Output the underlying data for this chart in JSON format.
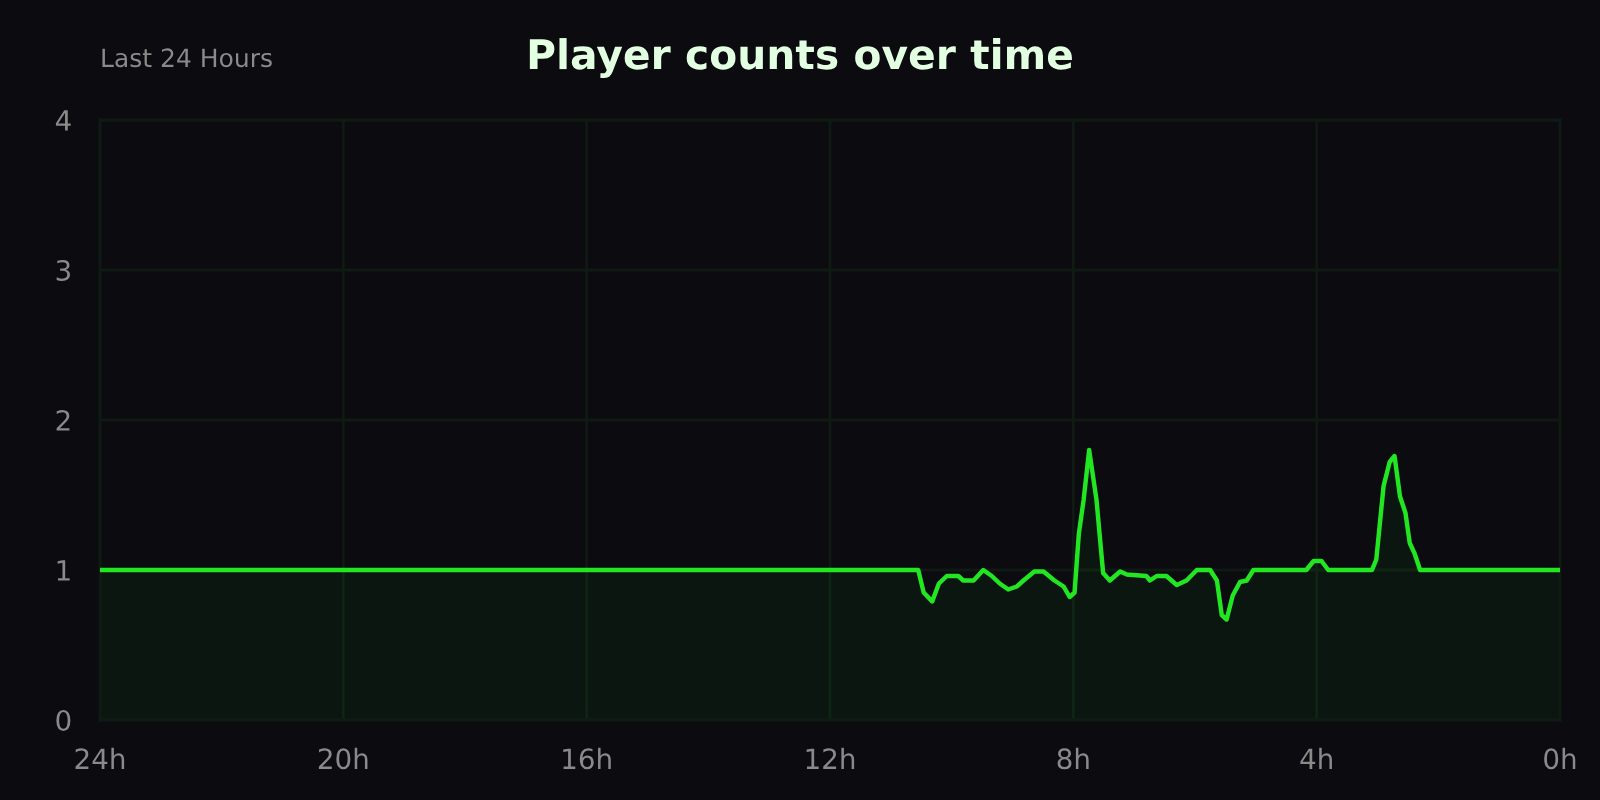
{
  "chart_data": {
    "type": "area",
    "title": "Player counts over time",
    "subtitle": "Last 24 Hours",
    "x": [
      24,
      10.55,
      10.46,
      10.32,
      10.21,
      10.08,
      9.89,
      9.81,
      9.64,
      9.48,
      9.34,
      9.21,
      9.07,
      8.93,
      8.82,
      8.64,
      8.49,
      8.31,
      8.16,
      8.06,
      7.98,
      7.91,
      7.83,
      7.74,
      7.62,
      7.51,
      7.4,
      7.23,
      7.12,
      6.8,
      6.74,
      6.63,
      6.47,
      6.3,
      6.14,
      5.97,
      5.75,
      5.64,
      5.56,
      5.48,
      5.38,
      5.26,
      5.15,
      5.04,
      4.17,
      4.05,
      3.92,
      3.81,
      3.09,
      3.02,
      2.9,
      2.8,
      2.72,
      2.63,
      2.54,
      2.47,
      2.39,
      2.3,
      0
    ],
    "values": [
      1,
      1,
      0.85,
      0.79,
      0.91,
      0.96,
      0.96,
      0.93,
      0.93,
      1.0,
      0.96,
      0.91,
      0.87,
      0.89,
      0.93,
      0.99,
      0.99,
      0.93,
      0.89,
      0.82,
      0.85,
      1.24,
      1.47,
      1.8,
      1.47,
      0.98,
      0.93,
      0.99,
      0.97,
      0.96,
      0.93,
      0.96,
      0.96,
      0.9,
      0.93,
      1.0,
      1.0,
      0.93,
      0.7,
      0.67,
      0.83,
      0.92,
      0.93,
      1.0,
      1.0,
      1.06,
      1.06,
      1.0,
      1.0,
      1.07,
      1.56,
      1.72,
      1.76,
      1.49,
      1.38,
      1.18,
      1.11,
      1.0,
      1.0
    ],
    "color": "#22e622",
    "xlim": [
      24,
      0
    ],
    "xticks": [
      {
        "value": 24,
        "label": "24h"
      },
      {
        "value": 20,
        "label": "20h"
      },
      {
        "value": 16,
        "label": "16h"
      },
      {
        "value": 12,
        "label": "12h"
      },
      {
        "value": 8,
        "label": "8h"
      },
      {
        "value": 4,
        "label": "4h"
      },
      {
        "value": 0,
        "label": "0h"
      }
    ],
    "ylim": [
      0,
      4
    ],
    "yticks": [
      0,
      1,
      2,
      3,
      4
    ],
    "grid": true,
    "line_style": "solid"
  }
}
